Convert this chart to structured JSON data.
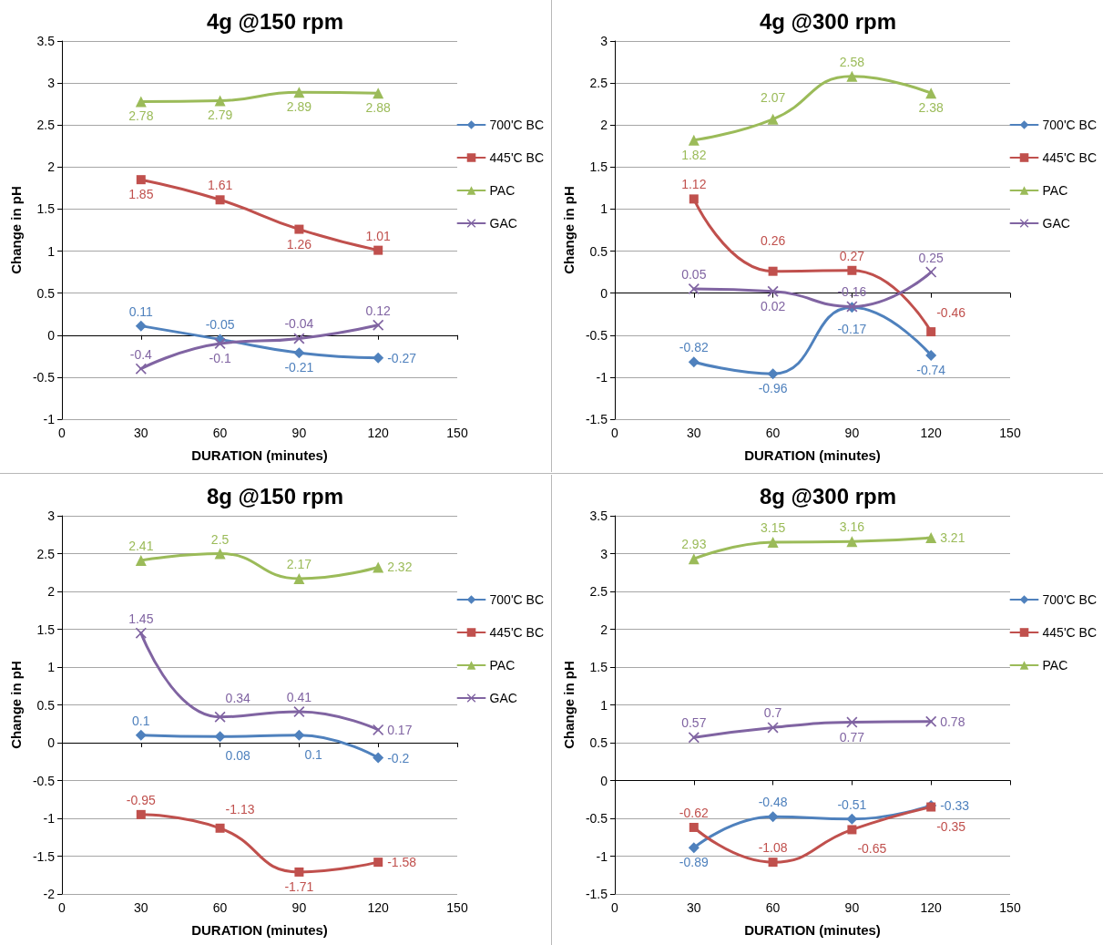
{
  "chart_data": [
    {
      "type": "line",
      "title": "4g @150 rpm",
      "xlabel": "DURATION (minutes)",
      "ylabel": "Change in pH",
      "x": [
        30,
        60,
        90,
        120
      ],
      "xlim": [
        0,
        150
      ],
      "xticks": [
        0,
        30,
        60,
        90,
        120,
        150
      ],
      "ylim": [
        -1,
        3.5
      ],
      "yticks": [
        -1,
        -0.5,
        0,
        0.5,
        1,
        1.5,
        2,
        2.5,
        3,
        3.5
      ],
      "grid": "y",
      "legend": "right",
      "data_labels": true,
      "line_style": "solid",
      "series": [
        {
          "name": "700'C BC",
          "color": "#4f81bd",
          "marker": "diamond",
          "values": [
            0.11,
            -0.05,
            -0.21,
            -0.27
          ]
        },
        {
          "name": "445'C BC",
          "color": "#c0504d",
          "marker": "square",
          "values": [
            1.85,
            1.61,
            1.26,
            1.01
          ]
        },
        {
          "name": "PAC",
          "color": "#9bbb59",
          "marker": "triangle",
          "values": [
            2.78,
            2.79,
            2.89,
            2.88
          ]
        },
        {
          "name": "GAC",
          "color": "#8064a2",
          "marker": "cross",
          "values": [
            -0.4,
            -0.1,
            -0.04,
            0.12
          ]
        }
      ]
    },
    {
      "type": "line",
      "title": "4g @300 rpm",
      "xlabel": "DURATION (minutes)",
      "ylabel": "Change in pH",
      "x": [
        30,
        60,
        90,
        120
      ],
      "xlim": [
        0,
        150
      ],
      "xticks": [
        0,
        30,
        60,
        90,
        120,
        150
      ],
      "ylim": [
        -1.5,
        3
      ],
      "yticks": [
        -1.5,
        -1,
        -0.5,
        0,
        0.5,
        1,
        1.5,
        2,
        2.5,
        3
      ],
      "grid": "y",
      "legend": "right",
      "data_labels": true,
      "line_style": "solid",
      "series": [
        {
          "name": "700'C BC",
          "color": "#4f81bd",
          "marker": "diamond",
          "values": [
            -0.82,
            -0.96,
            -0.17,
            -0.74
          ]
        },
        {
          "name": "445'C BC",
          "color": "#c0504d",
          "marker": "square",
          "values": [
            1.12,
            0.26,
            0.27,
            -0.46
          ]
        },
        {
          "name": "PAC",
          "color": "#9bbb59",
          "marker": "triangle",
          "values": [
            1.82,
            2.07,
            2.58,
            2.38
          ]
        },
        {
          "name": "GAC",
          "color": "#8064a2",
          "marker": "cross",
          "values": [
            0.05,
            0.02,
            -0.16,
            0.25
          ]
        }
      ]
    },
    {
      "type": "line",
      "title": "8g @150 rpm",
      "xlabel": "DURATION (minutes)",
      "ylabel": "Change in pH",
      "x": [
        30,
        60,
        90,
        120
      ],
      "xlim": [
        0,
        150
      ],
      "xticks": [
        0,
        30,
        60,
        90,
        120,
        150
      ],
      "ylim": [
        -2,
        3
      ],
      "yticks": [
        -2,
        -1.5,
        -1,
        -0.5,
        0,
        0.5,
        1,
        1.5,
        2,
        2.5,
        3
      ],
      "grid": "y",
      "legend": "right",
      "data_labels": true,
      "line_style": "solid",
      "series": [
        {
          "name": "700'C BC",
          "color": "#4f81bd",
          "marker": "diamond",
          "values": [
            0.1,
            0.08,
            0.1,
            -0.2
          ]
        },
        {
          "name": "445'C BC",
          "color": "#c0504d",
          "marker": "square",
          "values": [
            -0.95,
            -1.13,
            -1.71,
            -1.58
          ]
        },
        {
          "name": "PAC",
          "color": "#9bbb59",
          "marker": "triangle",
          "values": [
            2.41,
            2.5,
            2.17,
            2.32
          ]
        },
        {
          "name": "GAC",
          "color": "#8064a2",
          "marker": "cross",
          "values": [
            1.45,
            0.34,
            0.41,
            0.17
          ]
        }
      ]
    },
    {
      "type": "line",
      "title": "8g @300 rpm",
      "xlabel": "DURATION (minutes)",
      "ylabel": "Change in pH",
      "x": [
        30,
        60,
        90,
        120
      ],
      "xlim": [
        0,
        150
      ],
      "xticks": [
        0,
        30,
        60,
        90,
        120,
        150
      ],
      "ylim": [
        -1.5,
        3.5
      ],
      "yticks": [
        -1.5,
        -1,
        -0.5,
        0,
        0.5,
        1,
        1.5,
        2,
        2.5,
        3,
        3.5
      ],
      "grid": "y",
      "legend": "right",
      "data_labels": true,
      "line_style": "solid",
      "series": [
        {
          "name": "700'C BC",
          "color": "#4f81bd",
          "marker": "diamond",
          "values": [
            -0.89,
            -0.48,
            -0.51,
            -0.33
          ]
        },
        {
          "name": "445'C BC",
          "color": "#c0504d",
          "marker": "square",
          "values": [
            -0.62,
            -1.08,
            -0.65,
            -0.35
          ]
        },
        {
          "name": "PAC",
          "color": "#9bbb59",
          "marker": "triangle",
          "values": [
            2.93,
            3.15,
            3.16,
            3.21
          ]
        },
        {
          "color": "#8064a2",
          "marker": "cross",
          "values": [
            0.57,
            0.7,
            0.77,
            0.78
          ]
        }
      ]
    }
  ]
}
